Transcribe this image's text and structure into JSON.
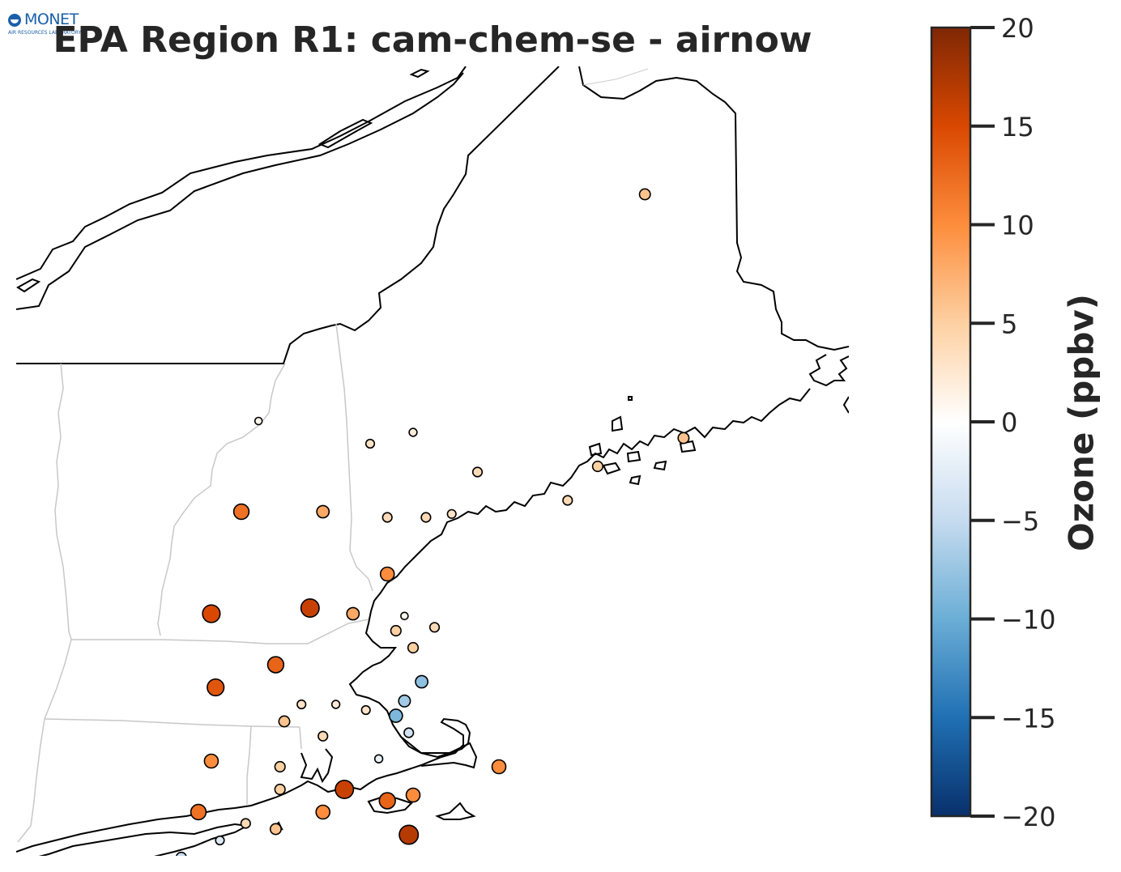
{
  "title": "EPA Region R1: cam-chem-se - airnow",
  "logo": {
    "name": "MONET",
    "subtitle": "AIR RESOURCES LABORATORY"
  },
  "colorbar": {
    "label": "Ozone (ppbv)",
    "vmin": -20,
    "vmax": 20,
    "ticks": [
      20,
      15,
      10,
      5,
      0,
      -5,
      -10,
      -15,
      -20
    ],
    "tick_labels": [
      "20",
      "15",
      "10",
      "5",
      "0",
      "−5",
      "−10",
      "−15",
      "−20"
    ],
    "colormap": "white-centered diverging: blue (negative) to orange/brown (positive)",
    "colors": {
      "neg_end": "#08306b",
      "neg_mid": "#6baed6",
      "center": "#ffffff",
      "pos_mid": "#fd8d3c",
      "pos_end": "#7f2704"
    }
  },
  "map": {
    "region": "New England (EPA Region 1)",
    "states_shown": [
      "Maine",
      "New Hampshire",
      "Vermont",
      "Massachusetts",
      "Connecticut",
      "Rhode Island"
    ],
    "coastline_color": "#000000",
    "state_border_color": "#c8c8c8"
  },
  "chart_data": {
    "type": "scatter",
    "variable": "Ozone bias (model - obs)",
    "units": "ppbv",
    "stations": [
      {
        "lon": -68.3,
        "lat": 46.8,
        "value": 6
      },
      {
        "lon": -72.8,
        "lat": 44.8,
        "value": 1
      },
      {
        "lon": -71.5,
        "lat": 44.6,
        "value": 3
      },
      {
        "lon": -71.0,
        "lat": 44.7,
        "value": 2
      },
      {
        "lon": -69.2,
        "lat": 44.1,
        "value": 4
      },
      {
        "lon": -67.85,
        "lat": 44.65,
        "value": 6
      },
      {
        "lon": -68.85,
        "lat": 44.4,
        "value": 5
      },
      {
        "lon": -70.25,
        "lat": 44.35,
        "value": 4
      },
      {
        "lon": -73.0,
        "lat": 44.0,
        "value": 12
      },
      {
        "lon": -72.05,
        "lat": 44.0,
        "value": 8
      },
      {
        "lon": -71.3,
        "lat": 43.95,
        "value": 4
      },
      {
        "lon": -70.85,
        "lat": 43.95,
        "value": 4
      },
      {
        "lon": -70.55,
        "lat": 43.98,
        "value": 3
      },
      {
        "lon": -71.3,
        "lat": 43.45,
        "value": 10
      },
      {
        "lon": -73.35,
        "lat": 43.1,
        "value": 15
      },
      {
        "lon": -72.2,
        "lat": 43.15,
        "value": 16
      },
      {
        "lon": -71.7,
        "lat": 43.1,
        "value": 8
      },
      {
        "lon": -71.1,
        "lat": 43.08,
        "value": 1
      },
      {
        "lon": -70.75,
        "lat": 42.98,
        "value": 4
      },
      {
        "lon": -71.2,
        "lat": 42.95,
        "value": 5
      },
      {
        "lon": -71.0,
        "lat": 42.8,
        "value": 5
      },
      {
        "lon": -72.6,
        "lat": 42.65,
        "value": 13
      },
      {
        "lon": -73.3,
        "lat": 42.45,
        "value": 14
      },
      {
        "lon": -70.9,
        "lat": 42.5,
        "value": -8
      },
      {
        "lon": -71.1,
        "lat": 42.33,
        "value": -7
      },
      {
        "lon": -71.2,
        "lat": 42.2,
        "value": -9
      },
      {
        "lon": -72.3,
        "lat": 42.3,
        "value": 3
      },
      {
        "lon": -71.9,
        "lat": 42.3,
        "value": 2
      },
      {
        "lon": -71.05,
        "lat": 42.05,
        "value": -4
      },
      {
        "lon": -72.5,
        "lat": 42.15,
        "value": 6
      },
      {
        "lon": -71.55,
        "lat": 42.25,
        "value": 3
      },
      {
        "lon": -72.05,
        "lat": 42.02,
        "value": 4
      },
      {
        "lon": -70.0,
        "lat": 41.75,
        "value": 10
      },
      {
        "lon": -71.4,
        "lat": 41.82,
        "value": -2
      },
      {
        "lon": -73.35,
        "lat": 41.8,
        "value": 10
      },
      {
        "lon": -72.55,
        "lat": 41.75,
        "value": 5
      },
      {
        "lon": -71.8,
        "lat": 41.55,
        "value": 16
      },
      {
        "lon": -71.0,
        "lat": 41.5,
        "value": 10
      },
      {
        "lon": -72.55,
        "lat": 41.55,
        "value": 5
      },
      {
        "lon": -71.3,
        "lat": 41.45,
        "value": 13
      },
      {
        "lon": -73.5,
        "lat": 41.35,
        "value": 12
      },
      {
        "lon": -72.05,
        "lat": 41.35,
        "value": 10
      },
      {
        "lon": -72.95,
        "lat": 41.25,
        "value": 4
      },
      {
        "lon": -72.6,
        "lat": 41.2,
        "value": 6
      },
      {
        "lon": -71.05,
        "lat": 41.15,
        "value": 17
      },
      {
        "lon": -73.25,
        "lat": 41.1,
        "value": -3
      },
      {
        "lon": -73.7,
        "lat": 40.95,
        "value": -5
      }
    ]
  }
}
